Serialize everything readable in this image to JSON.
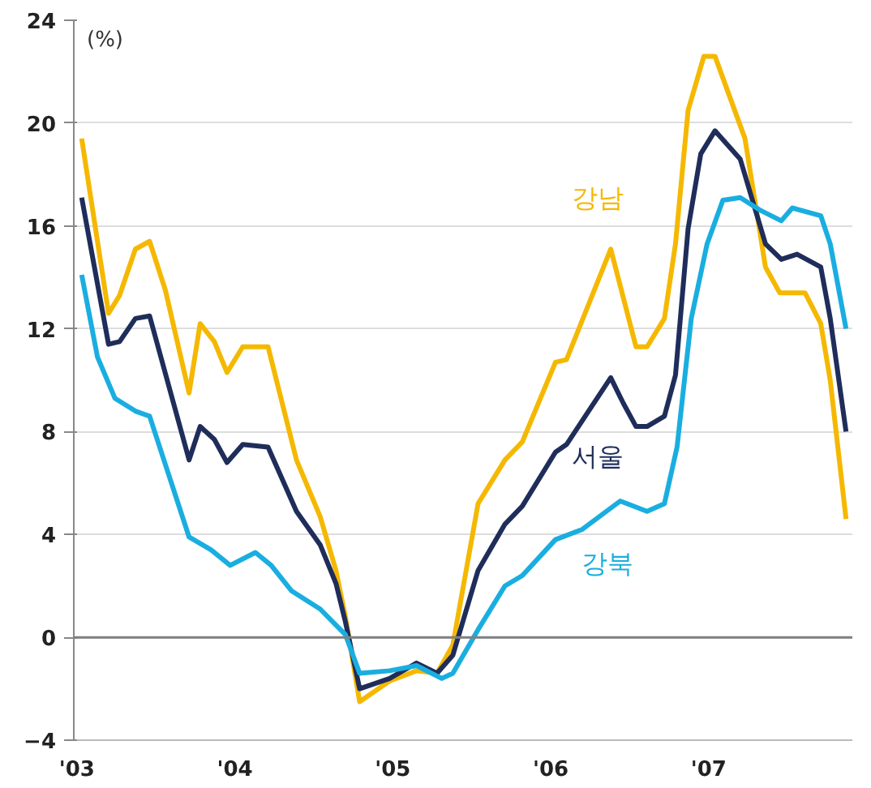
{
  "chart_data": {
    "type": "line",
    "ylabel": "(%)",
    "xlim": [
      2002.98,
      2007.91
    ],
    "xticks": [
      {
        "value": 2003,
        "label": "'03"
      },
      {
        "value": 2004,
        "label": "'04"
      },
      {
        "value": 2005,
        "label": "'05"
      },
      {
        "value": 2006,
        "label": "'06"
      },
      {
        "value": 2007,
        "label": "'07"
      }
    ],
    "ylim": [
      -4,
      24
    ],
    "yticks": [
      -4,
      0,
      4,
      8,
      12,
      16,
      20,
      24
    ],
    "grid": "y",
    "marker": "none",
    "line_style": "solid",
    "ref_lines": [
      {
        "axis": "y",
        "value": 0,
        "color": "#808080"
      }
    ],
    "series": [
      {
        "name": "강남",
        "color": "#f5b800",
        "x": [
          2003.03,
          2003.2,
          2003.27,
          2003.37,
          2003.46,
          2003.56,
          2003.71,
          2003.78,
          2003.87,
          2003.95,
          2004.05,
          2004.21,
          2004.39,
          2004.54,
          2004.64,
          2004.7,
          2004.79,
          2004.98,
          2005.15,
          2005.28,
          2005.38,
          2005.54,
          2005.71,
          2005.82,
          2006.03,
          2006.1,
          2006.38,
          2006.54,
          2006.61,
          2006.72,
          2006.79,
          2006.87,
          2006.97,
          2007.04,
          2007.23,
          2007.36,
          2007.45,
          2007.61,
          2007.71,
          2007.77,
          2007.87
        ],
        "values": [
          19.4,
          12.6,
          13.3,
          15.1,
          15.4,
          13.5,
          9.5,
          12.2,
          11.5,
          10.3,
          11.3,
          11.3,
          6.9,
          4.7,
          2.6,
          0.8,
          -2.5,
          -1.7,
          -1.3,
          -1.4,
          -0.3,
          5.2,
          6.9,
          7.6,
          10.7,
          10.8,
          15.1,
          11.3,
          11.3,
          12.4,
          15.3,
          20.5,
          22.6,
          22.6,
          19.4,
          14.4,
          13.4,
          13.4,
          12.2,
          10.0,
          4.6
        ]
      },
      {
        "name": "서울",
        "color": "#1f2d5a",
        "x": [
          2003.03,
          2003.2,
          2003.27,
          2003.37,
          2003.46,
          2003.71,
          2003.78,
          2003.87,
          2003.95,
          2004.05,
          2004.21,
          2004.39,
          2004.54,
          2004.64,
          2004.7,
          2004.79,
          2004.98,
          2005.15,
          2005.28,
          2005.38,
          2005.54,
          2005.71,
          2005.82,
          2006.03,
          2006.1,
          2006.38,
          2006.46,
          2006.54,
          2006.61,
          2006.72,
          2006.79,
          2006.87,
          2006.95,
          2007.04,
          2007.2,
          2007.36,
          2007.46,
          2007.56,
          2007.71,
          2007.77,
          2007.87
        ],
        "values": [
          17.1,
          11.4,
          11.5,
          12.4,
          12.5,
          6.9,
          8.2,
          7.7,
          6.8,
          7.5,
          7.4,
          4.9,
          3.6,
          2.1,
          0.6,
          -2.0,
          -1.6,
          -1.0,
          -1.4,
          -0.7,
          2.6,
          4.4,
          5.1,
          7.2,
          7.5,
          10.1,
          9.1,
          8.2,
          8.2,
          8.6,
          10.2,
          15.9,
          18.8,
          19.7,
          18.6,
          15.3,
          14.7,
          14.9,
          14.4,
          12.4,
          8.0
        ]
      },
      {
        "name": "강북",
        "color": "#1aaee0",
        "x": [
          2003.03,
          2003.13,
          2003.24,
          2003.37,
          2003.46,
          2003.71,
          2003.85,
          2003.97,
          2004.13,
          2004.23,
          2004.36,
          2004.54,
          2004.7,
          2004.79,
          2004.98,
          2005.15,
          2005.31,
          2005.38,
          2005.54,
          2005.71,
          2005.82,
          2006.03,
          2006.2,
          2006.44,
          2006.61,
          2006.72,
          2006.8,
          2006.89,
          2006.99,
          2007.09,
          2007.2,
          2007.33,
          2007.46,
          2007.53,
          2007.71,
          2007.77,
          2007.87
        ],
        "values": [
          14.1,
          10.9,
          9.3,
          8.8,
          8.6,
          3.9,
          3.4,
          2.8,
          3.3,
          2.8,
          1.8,
          1.1,
          0.1,
          -1.4,
          -1.3,
          -1.1,
          -1.6,
          -1.4,
          0.3,
          2.0,
          2.4,
          3.8,
          4.2,
          5.3,
          4.9,
          5.2,
          7.4,
          12.4,
          15.3,
          17.0,
          17.1,
          16.6,
          16.2,
          16.7,
          16.4,
          15.3,
          12.0
        ]
      }
    ]
  }
}
